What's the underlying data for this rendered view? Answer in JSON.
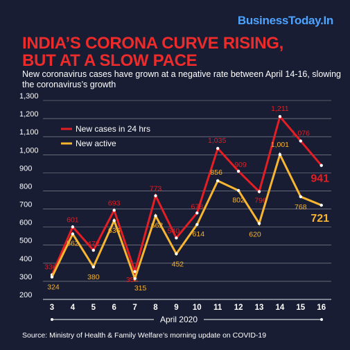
{
  "brand": "BusinessToday.In",
  "title_line1": "INDIA’S CORONA CURVE RISING,",
  "title_line2": "BUT AT A SLOW PACE",
  "subtitle": "New coronavirus cases have grown at a negative rate between April 14-16, slowing the coronavirus’s growth",
  "source": "Source: Ministry of Health & Family Welfare’s morning update on COVID-19",
  "colors": {
    "background": "#181d33",
    "cases": "#e31e24",
    "active": "#f7b531",
    "brand": "#4da3ff"
  },
  "chart_data": {
    "type": "line",
    "x": [
      3,
      4,
      5,
      6,
      7,
      8,
      9,
      10,
      11,
      12,
      13,
      14,
      15,
      16
    ],
    "xlabel": "April 2020",
    "ylabel": "",
    "ylim": [
      200,
      1300
    ],
    "yticks": [
      200,
      300,
      400,
      500,
      600,
      700,
      800,
      900,
      1000,
      1100,
      1200,
      1300
    ],
    "ytick_labels": [
      "200",
      "300",
      "400",
      "500",
      "600",
      "700",
      "800",
      "900",
      "1,000",
      "1,100",
      "1,200",
      "1,300"
    ],
    "grid": true,
    "legend_position": "top-left",
    "series": [
      {
        "name": "New cases in 24 hrs",
        "color": "#e31e24",
        "values": [
          336,
          601,
          472,
          693,
          354,
          773,
          540,
          678,
          1035,
          909,
          796,
          1211,
          1076,
          941
        ],
        "labels": [
          "336",
          "601",
          "472",
          "693",
          "354",
          "773",
          "540",
          "678",
          "1,035",
          "909",
          "796",
          "1,211",
          "1,076",
          "941"
        ]
      },
      {
        "name": "New active",
        "color": "#f7b531",
        "values": [
          324,
          562,
          380,
          636,
          315,
          662,
          452,
          614,
          856,
          802,
          620,
          1001,
          768,
          721
        ],
        "labels": [
          "324",
          "562",
          "380",
          "636",
          "315",
          "662",
          "452",
          "614",
          "856",
          "802",
          "620",
          "1,001",
          "768",
          "721"
        ]
      }
    ]
  }
}
